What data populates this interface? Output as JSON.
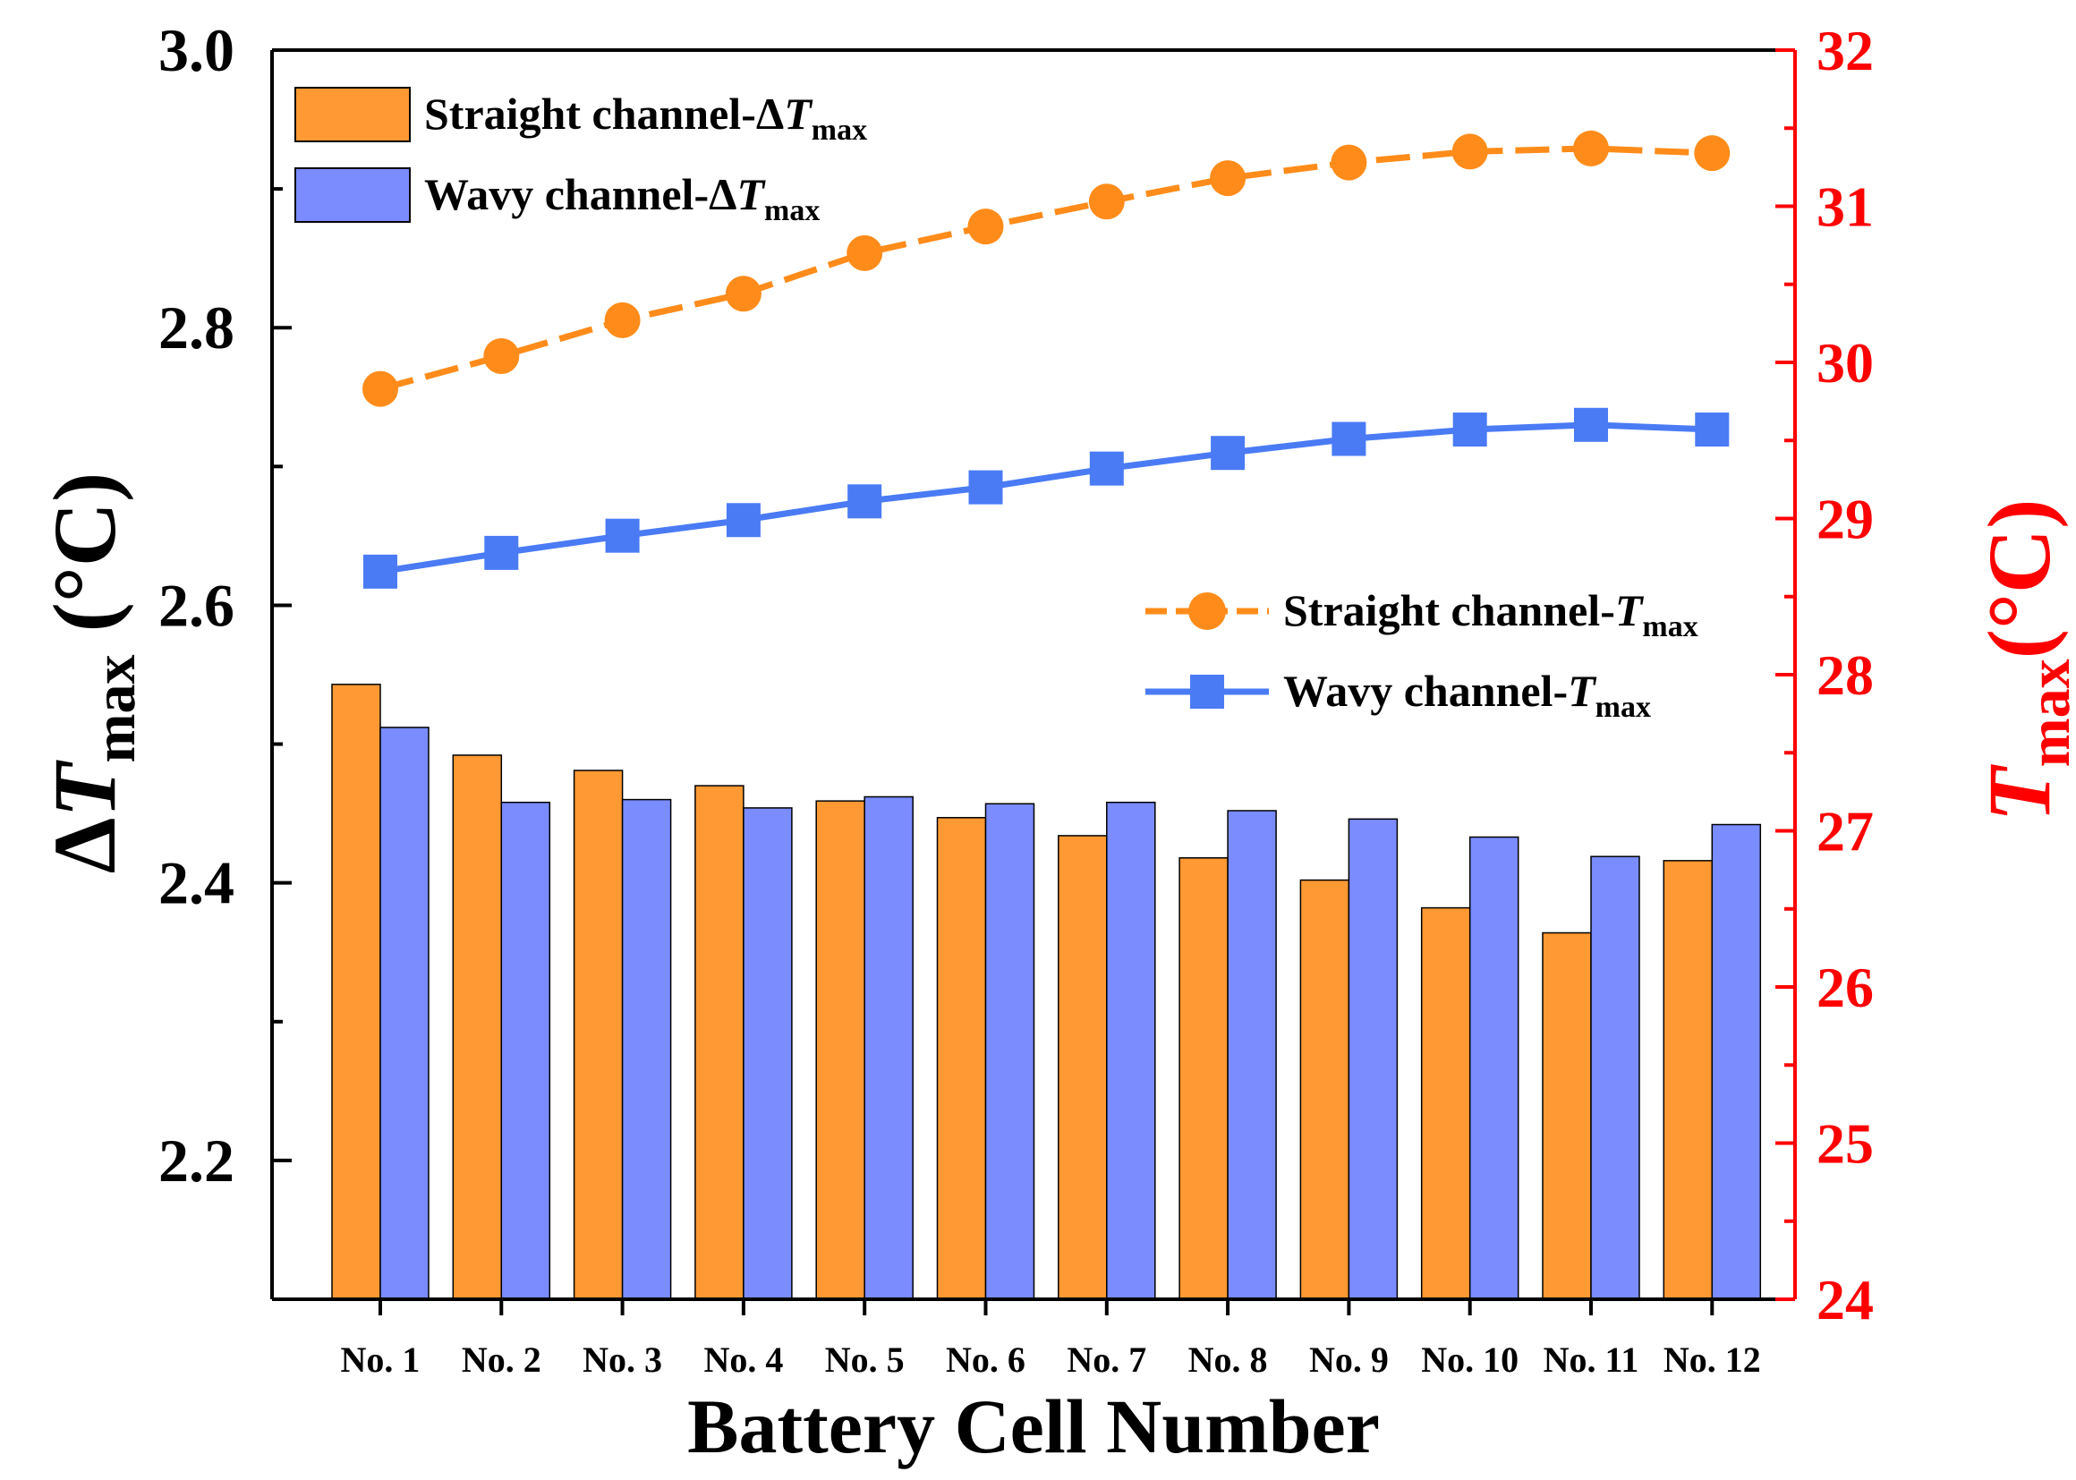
{
  "chart_data": {
    "type": "bar",
    "xlabel": "Battery Cell Number",
    "ylabel": {
      "prefix": "Δ",
      "var": "T",
      "sub": "max",
      "unit": " (°C)"
    },
    "y2label": {
      "var": "T",
      "sub": "max",
      "unit": "(°C)"
    },
    "ylim": [
      2.1,
      3.0
    ],
    "y2lim": [
      24,
      32
    ],
    "yticks": [
      "2.2",
      "2.4",
      "2.6",
      "2.8",
      "3.0"
    ],
    "y2ticks": [
      "24",
      "25",
      "26",
      "27",
      "28",
      "29",
      "30",
      "31",
      "32"
    ],
    "categories": [
      "No. 1",
      "No. 2",
      "No. 3",
      "No. 4",
      "No. 5",
      "No. 6",
      "No. 7",
      "No. 8",
      "No. 9",
      "No. 10",
      "No. 11",
      "No. 12"
    ],
    "bar_series": [
      {
        "name": "Straight channel-ΔT",
        "legend": {
          "prefix": "Straight channel-Δ",
          "var": "T",
          "sub": "max"
        },
        "color": "#FF9933",
        "values": [
          2.543,
          2.492,
          2.481,
          2.47,
          2.459,
          2.447,
          2.434,
          2.418,
          2.402,
          2.382,
          2.364,
          2.416
        ]
      },
      {
        "name": "Wavy channel-ΔT",
        "legend": {
          "prefix": "Wavy channel-Δ",
          "var": "T",
          "sub": "max"
        },
        "color": "#7A8CFF",
        "values": [
          2.512,
          2.458,
          2.46,
          2.454,
          2.462,
          2.457,
          2.458,
          2.452,
          2.446,
          2.433,
          2.419,
          2.442
        ]
      }
    ],
    "line_series": [
      {
        "name": "Straight channel-T",
        "legend": {
          "prefix": "Straight channel-",
          "var": "T",
          "sub": "max"
        },
        "color": "#FF8C1A",
        "marker": "circle",
        "dash": true,
        "values": [
          29.83,
          30.04,
          30.27,
          30.44,
          30.7,
          30.87,
          31.03,
          31.18,
          31.28,
          31.35,
          31.37,
          31.34
        ]
      },
      {
        "name": "Wavy channel-T",
        "legend": {
          "prefix": "Wavy channel-",
          "var": "T",
          "sub": "max"
        },
        "color": "#4A7BF5",
        "marker": "square",
        "dash": false,
        "values": [
          28.66,
          28.78,
          28.89,
          28.99,
          29.11,
          29.2,
          29.32,
          29.42,
          29.51,
          29.57,
          29.6,
          29.57
        ]
      }
    ]
  }
}
